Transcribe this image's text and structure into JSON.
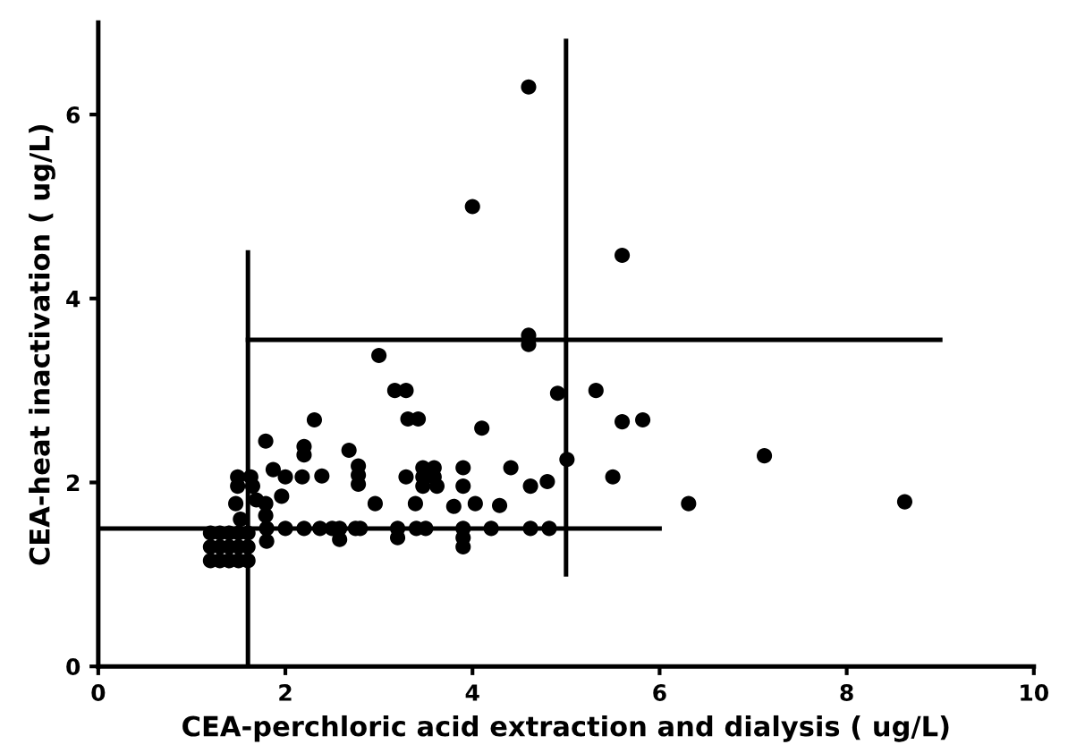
{
  "chart_data": {
    "type": "scatter",
    "xlabel": "CEA-perchloric acid extraction and dialysis ( ug/L)",
    "ylabel": "CEA-heat inactivation ( ug/L)",
    "xlim": [
      0,
      10
    ],
    "ylim": [
      0,
      7
    ],
    "xticks": [
      0,
      2,
      4,
      6,
      8,
      10
    ],
    "yticks": [
      0,
      2,
      4,
      6
    ],
    "grid": false,
    "legend": false,
    "series": [
      {
        "color": "#000000",
        "marker": "circle",
        "x": [
          4.6,
          4.0,
          5.6,
          4.6,
          4.6,
          3.0,
          3.17,
          3.29,
          4.91,
          5.32,
          3.31,
          3.42,
          2.31,
          4.1,
          5.6,
          5.82,
          1.79,
          2.2,
          2.2,
          2.68,
          7.12,
          5.01,
          1.87,
          2.0,
          2.18,
          2.39,
          2.78,
          2.78,
          2.78,
          3.29,
          3.47,
          3.59,
          3.47,
          3.59,
          3.47,
          3.62,
          3.9,
          3.9,
          4.41,
          4.62,
          4.8,
          5.5,
          1.96,
          2.96,
          3.39,
          3.8,
          4.03,
          4.29,
          6.31,
          8.62,
          1.8,
          1.8,
          2.0,
          2.2,
          2.37,
          2.5,
          2.58,
          2.58,
          2.75,
          2.8,
          3.2,
          3.2,
          3.4,
          3.5,
          3.9,
          3.9,
          3.9,
          4.2,
          4.62,
          4.82,
          1.2,
          1.3,
          1.4,
          1.5,
          1.6,
          1.2,
          1.3,
          1.4,
          1.5,
          1.6,
          1.2,
          1.3,
          1.4,
          1.5,
          1.6,
          1.49,
          1.63,
          1.49,
          1.65,
          1.47,
          1.69,
          1.79,
          1.79,
          1.52
        ],
        "values": [
          6.3,
          5.0,
          4.47,
          3.6,
          3.5,
          3.38,
          3.0,
          3.0,
          2.97,
          3.0,
          2.69,
          2.69,
          2.68,
          2.59,
          2.66,
          2.68,
          2.45,
          2.39,
          2.3,
          2.35,
          2.29,
          2.25,
          2.14,
          2.06,
          2.06,
          2.07,
          2.18,
          2.08,
          1.98,
          2.06,
          2.16,
          2.16,
          2.06,
          2.06,
          1.96,
          1.96,
          2.16,
          1.96,
          2.16,
          1.96,
          2.01,
          2.06,
          1.85,
          1.77,
          1.77,
          1.74,
          1.77,
          1.75,
          1.77,
          1.79,
          1.5,
          1.36,
          1.5,
          1.5,
          1.5,
          1.5,
          1.5,
          1.38,
          1.5,
          1.5,
          1.5,
          1.4,
          1.5,
          1.5,
          1.5,
          1.4,
          1.3,
          1.5,
          1.5,
          1.5,
          1.15,
          1.15,
          1.15,
          1.15,
          1.15,
          1.3,
          1.3,
          1.3,
          1.3,
          1.3,
          1.45,
          1.45,
          1.45,
          1.45,
          1.45,
          2.06,
          2.06,
          1.96,
          1.96,
          1.77,
          1.81,
          1.77,
          1.64,
          1.6
        ]
      },
      {
        "type": "line",
        "color": "#000000",
        "marker": "none",
        "x": [
          0,
          6
        ],
        "values": [
          1.5,
          1.5
        ]
      },
      {
        "type": "line",
        "color": "#000000",
        "marker": "none",
        "x": [
          1.6,
          9
        ],
        "values": [
          3.55,
          3.55
        ]
      },
      {
        "type": "line",
        "color": "#000000",
        "marker": "none",
        "x": [
          1.6,
          1.6
        ],
        "values": [
          0,
          4.5
        ]
      },
      {
        "type": "line",
        "color": "#000000",
        "marker": "none",
        "x": [
          5,
          5
        ],
        "values": [
          1.0,
          6.8
        ]
      }
    ]
  }
}
